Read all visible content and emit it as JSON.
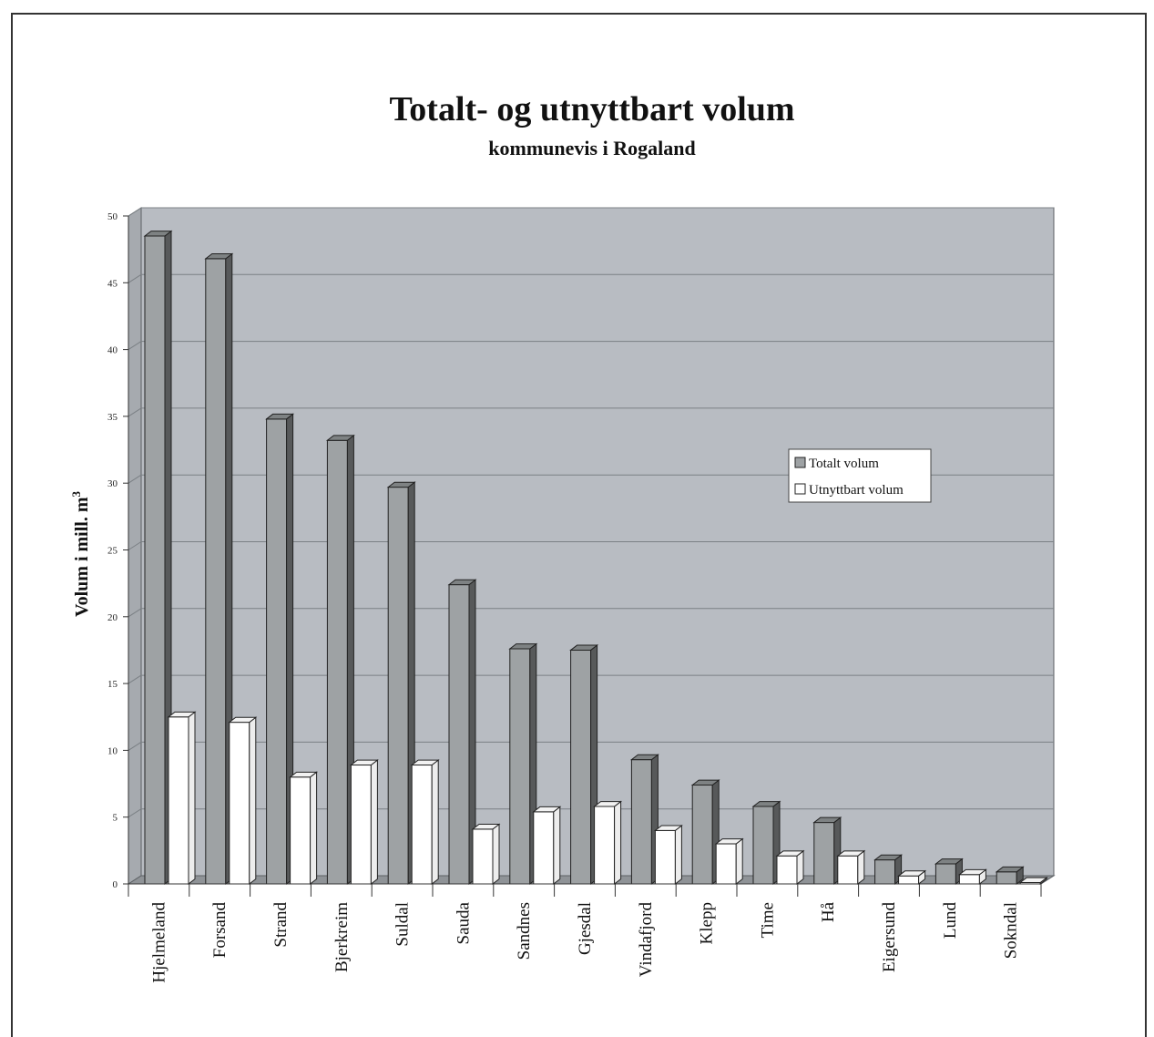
{
  "chart_data": {
    "type": "bar",
    "title": "Totalt- og utnyttbart volum",
    "subtitle": "kommunevis i Rogaland",
    "ylabel": "Volum i mill. m",
    "ylabel_superscript": "3",
    "ylim": [
      0,
      50
    ],
    "yticks": [
      0,
      5,
      10,
      15,
      20,
      25,
      30,
      35,
      40,
      45,
      50
    ],
    "grid": true,
    "legend_position": "right",
    "categories": [
      "Hjelmeland",
      "Forsand",
      "Strand",
      "Bjerkreim",
      "Suldal",
      "Sauda",
      "Sandnes",
      "Gjesdal",
      "Vindafjord",
      "Klepp",
      "Time",
      "Hå",
      "Eigersund",
      "Lund",
      "Sokndal"
    ],
    "series": [
      {
        "name": "Totalt volum",
        "color": "#9ea2a4",
        "values": [
          48.5,
          46.8,
          34.8,
          33.2,
          29.7,
          22.4,
          17.6,
          17.5,
          9.3,
          7.4,
          5.8,
          4.6,
          1.8,
          1.5,
          0.9
        ]
      },
      {
        "name": "Utnyttbart volum",
        "color": "#ffffff",
        "values": [
          12.5,
          12.1,
          8.0,
          8.9,
          8.9,
          4.1,
          5.4,
          5.8,
          4.0,
          3.0,
          2.1,
          2.1,
          0.6,
          0.7,
          0.1
        ]
      }
    ],
    "colors": {
      "plot_background": "#b8bcc2",
      "gridline": "#7b8085",
      "floor": "#8f9397"
    }
  }
}
